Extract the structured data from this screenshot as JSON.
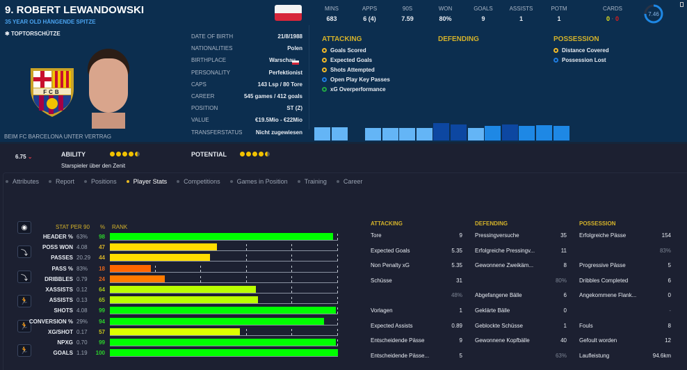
{
  "player": {
    "name": "9. ROBERT LEWANDOWSKI",
    "subtitle": "35 YEAR OLD HÄNGENDE SPITZE",
    "badge": "TOPTORSCHÜTZE",
    "contract": "BEIM FC BARCELONA UNTER VERTRAG",
    "club_logo_text": "FCB"
  },
  "info": [
    {
      "label": "DATE OF BIRTH",
      "value": "21/8/1988"
    },
    {
      "label": "NATIONALITIES",
      "value": "Polen"
    },
    {
      "label": "BIRTHPLACE",
      "value": "Warschau"
    },
    {
      "label": "PERSONALITY",
      "value": "Perfektionist"
    },
    {
      "label": "CAPS",
      "value": "143 Lsp / 80 Tore"
    },
    {
      "label": "CAREER",
      "value": "545 games / 412 goals"
    },
    {
      "label": "POSITION",
      "value": "ST (Z)"
    },
    {
      "label": "VALUE",
      "value": "€19.5Mio - €22Mio"
    },
    {
      "label": "TRANSFERSTATUS",
      "value": "Nicht zugewiesen"
    }
  ],
  "header_stats": [
    {
      "label": "MINS",
      "value": "683"
    },
    {
      "label": "APPS",
      "value": "6 (4)"
    },
    {
      "label": "90S",
      "value": "7.59"
    },
    {
      "label": "WON",
      "value": "80%"
    },
    {
      "label": "GOALS",
      "value": "9"
    },
    {
      "label": "ASSISTS",
      "value": "1"
    },
    {
      "label": "POTM",
      "value": "1"
    }
  ],
  "cards": {
    "label": "CARDS",
    "yellow": "0",
    "red": "0"
  },
  "rating": {
    "value": "7.46",
    "fraction": 0.746
  },
  "highlights": {
    "attacking": {
      "title": "ATTACKING",
      "items": [
        {
          "label": "Goals Scored",
          "color": "#f2b928"
        },
        {
          "label": "Expected Goals",
          "color": "#f2b928"
        },
        {
          "label": "Shots Attempted",
          "color": "#f2b928"
        },
        {
          "label": "Open Play Key Passes",
          "color": "#1e7be0"
        },
        {
          "label": "xG Overperformance",
          "color": "#22a844"
        }
      ]
    },
    "defending": {
      "title": "DEFENDING",
      "items": []
    },
    "possession": {
      "title": "POSSESSION",
      "items": [
        {
          "label": "Distance Covered",
          "color": "#f2b928"
        },
        {
          "label": "Possession Lost",
          "color": "#1e7be0"
        }
      ]
    }
  },
  "form_bars": [
    {
      "v": 19,
      "c": "#64b5f6"
    },
    {
      "v": 19,
      "c": "#64b5f6"
    },
    null,
    {
      "v": 18,
      "c": "#64b5f6"
    },
    {
      "v": 18,
      "c": "#64b5f6"
    },
    {
      "v": 18,
      "c": "#64b5f6"
    },
    {
      "v": 18,
      "c": "#64b5f6"
    },
    {
      "v": 25,
      "c": "#0d47a1"
    },
    {
      "v": 23,
      "c": "#0d47a1"
    },
    {
      "v": 18,
      "c": "#64b5f6"
    },
    {
      "v": 21,
      "c": "#1e88e5"
    },
    {
      "v": 23,
      "c": "#0d47a1"
    },
    {
      "v": 21,
      "c": "#1e88e5"
    },
    {
      "v": 22,
      "c": "#1e88e5"
    },
    {
      "v": 21,
      "c": "#1e88e5"
    }
  ],
  "ability": {
    "ca_value": "6.75",
    "ability_label": "ABILITY",
    "potential_label": "POTENTIAL",
    "ability_stars": 4.5,
    "potential_stars": 4.5,
    "description": "Starspieler über den Zenit"
  },
  "tabs": [
    "Attributes",
    "Report",
    "Positions",
    "Player Stats",
    "Competitions",
    "Games in Position",
    "Training",
    "Career"
  ],
  "active_tab": 3,
  "rank_table": {
    "headers": {
      "stat": "STAT PER 90",
      "pct": "%",
      "rank": "RANK"
    },
    "rows": [
      {
        "stat": "HEADER %",
        "value": "63%",
        "rank": "98",
        "color": "#00ff00",
        "tcolor": "#2bd12b"
      },
      {
        "stat": "POSS WON",
        "value": "4.08",
        "rank": "47",
        "color": "#ffdd00",
        "tcolor": "#d4b22a"
      },
      {
        "stat": "PASSES",
        "value": "20.29",
        "rank": "44",
        "color": "#ffdd00",
        "tcolor": "#d4b22a"
      },
      {
        "stat": "PASS %",
        "value": "83%",
        "rank": "18",
        "color": "#ff6600",
        "tcolor": "#e8661a"
      },
      {
        "stat": "DRIBBLES",
        "value": "0.79",
        "rank": "24",
        "color": "#ff7a00",
        "tcolor": "#e8661a"
      },
      {
        "stat": "XASSISTS",
        "value": "0.12",
        "rank": "64",
        "color": "#bbff00",
        "tcolor": "#a8c81a"
      },
      {
        "stat": "ASSISTS",
        "value": "0.13",
        "rank": "65",
        "color": "#bbff00",
        "tcolor": "#a8c81a"
      },
      {
        "stat": "SHOTS",
        "value": "4.08",
        "rank": "99",
        "color": "#00ff00",
        "tcolor": "#2bd12b"
      },
      {
        "stat": "CONVERSION %",
        "value": "29%",
        "rank": "94",
        "color": "#00ff00",
        "tcolor": "#2bd12b"
      },
      {
        "stat": "XG/SHOT",
        "value": "0.17",
        "rank": "57",
        "color": "#ddff00",
        "tcolor": "#c8c81a"
      },
      {
        "stat": "NPXG",
        "value": "0.70",
        "rank": "99",
        "color": "#00ff00",
        "tcolor": "#2bd12b"
      },
      {
        "stat": "GOALS",
        "value": "1.19",
        "rank": "100",
        "color": "#00ff00",
        "tcolor": "#2bd12b"
      }
    ]
  },
  "stat_columns": [
    {
      "title": "ATTACKING",
      "rows": [
        {
          "l": "Tore",
          "v": "9"
        },
        {
          "l": "Expected Goals",
          "v": "5.35"
        },
        {
          "l": "Non Penalty xG",
          "v": "5.35"
        },
        {
          "l": "Schüsse",
          "v": "31"
        },
        {
          "l": "",
          "v": "48%",
          "sub": true
        },
        {
          "l": "Vorlagen",
          "v": "1"
        },
        {
          "l": "Expected Assists",
          "v": "0.89"
        },
        {
          "l": "Entscheidende Pässe",
          "v": "9"
        },
        {
          "l": "Entscheidende Pässe...",
          "v": "5"
        }
      ]
    },
    {
      "title": "DEFENDING",
      "rows": [
        {
          "l": "Pressingversuche",
          "v": "35"
        },
        {
          "l": "Erfolgreiche Pressingv...",
          "v": "11"
        },
        {
          "l": "Gewonnene Zweikäm...",
          "v": "8"
        },
        {
          "l": "",
          "v": "80%",
          "sub": true
        },
        {
          "l": "Abgefangene Bälle",
          "v": "6"
        },
        {
          "l": "Geklärte Bälle",
          "v": "0"
        },
        {
          "l": "Geblockte Schüsse",
          "v": "1"
        },
        {
          "l": "Gewonnene Kopfbälle",
          "v": "40"
        },
        {
          "l": "",
          "v": "63%",
          "sub": true
        }
      ]
    },
    {
      "title": "POSSESSION",
      "rows": [
        {
          "l": "Erfolgreiche Pässe",
          "v": "154"
        },
        {
          "l": "",
          "v": "83%",
          "sub": true
        },
        {
          "l": "Progressive Pässe",
          "v": "5"
        },
        {
          "l": "Dribbles Completed",
          "v": "6"
        },
        {
          "l": "Angekommene Flank...",
          "v": "0"
        },
        {
          "l": "",
          "v": "-",
          "sub": true
        },
        {
          "l": "Fouls",
          "v": "8"
        },
        {
          "l": "Gefoult worden",
          "v": "12"
        },
        {
          "l": "Laufleistung",
          "v": "94.6km"
        }
      ]
    }
  ]
}
